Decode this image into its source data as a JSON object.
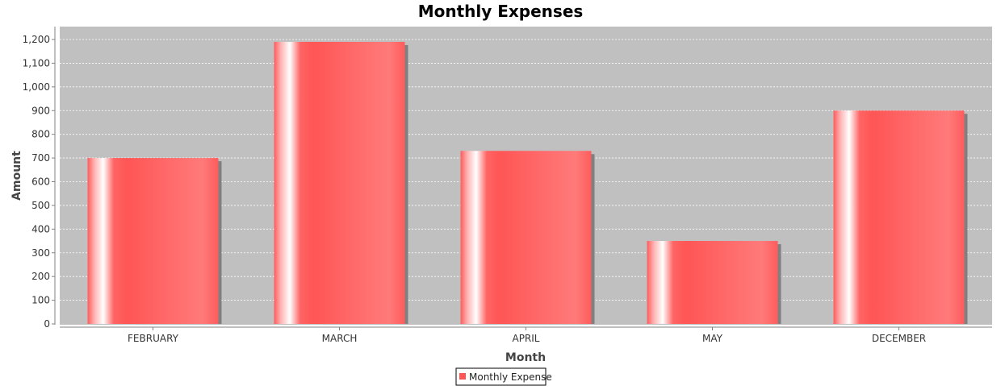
{
  "chart_data": {
    "type": "bar",
    "title": "Monthly Expenses",
    "xlabel": "Month",
    "ylabel": "Amount",
    "categories": [
      "FEBRUARY",
      "MARCH",
      "APRIL",
      "MAY",
      "DECEMBER"
    ],
    "series": [
      {
        "name": "Monthly Expense",
        "values": [
          700,
          1190,
          730,
          350,
          900
        ]
      }
    ],
    "ylim": [
      0,
      1250
    ],
    "y_ticks": [
      0,
      100,
      200,
      300,
      400,
      500,
      600,
      700,
      800,
      900,
      1000,
      1100,
      1200
    ],
    "y_tick_labels": [
      "0",
      "100",
      "200",
      "300",
      "400",
      "500",
      "600",
      "700",
      "800",
      "900",
      "1,000",
      "1,100",
      "1,200"
    ],
    "grid": true,
    "legend_position": "bottom-center",
    "colors": {
      "bar": "#ff5555",
      "bar_highlight": "#ffffff",
      "bar_shadow": "#808080",
      "plot_background": "#c0c0c0",
      "gridline": "#ffffff"
    }
  }
}
